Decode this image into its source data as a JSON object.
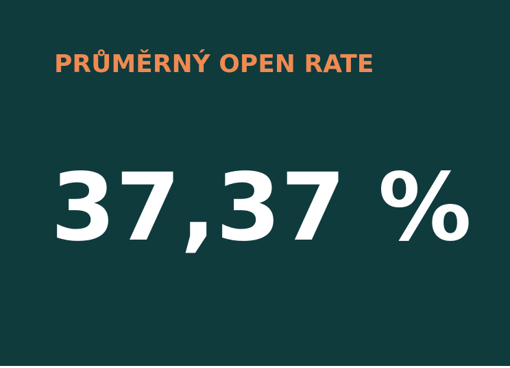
{
  "card": {
    "label": "PRŮMĚRNÝ OPEN RATE",
    "value": "37,37 %",
    "background_color": "#0f3b3d",
    "label_color": "#ef8a52",
    "value_color": "#ffffff"
  }
}
